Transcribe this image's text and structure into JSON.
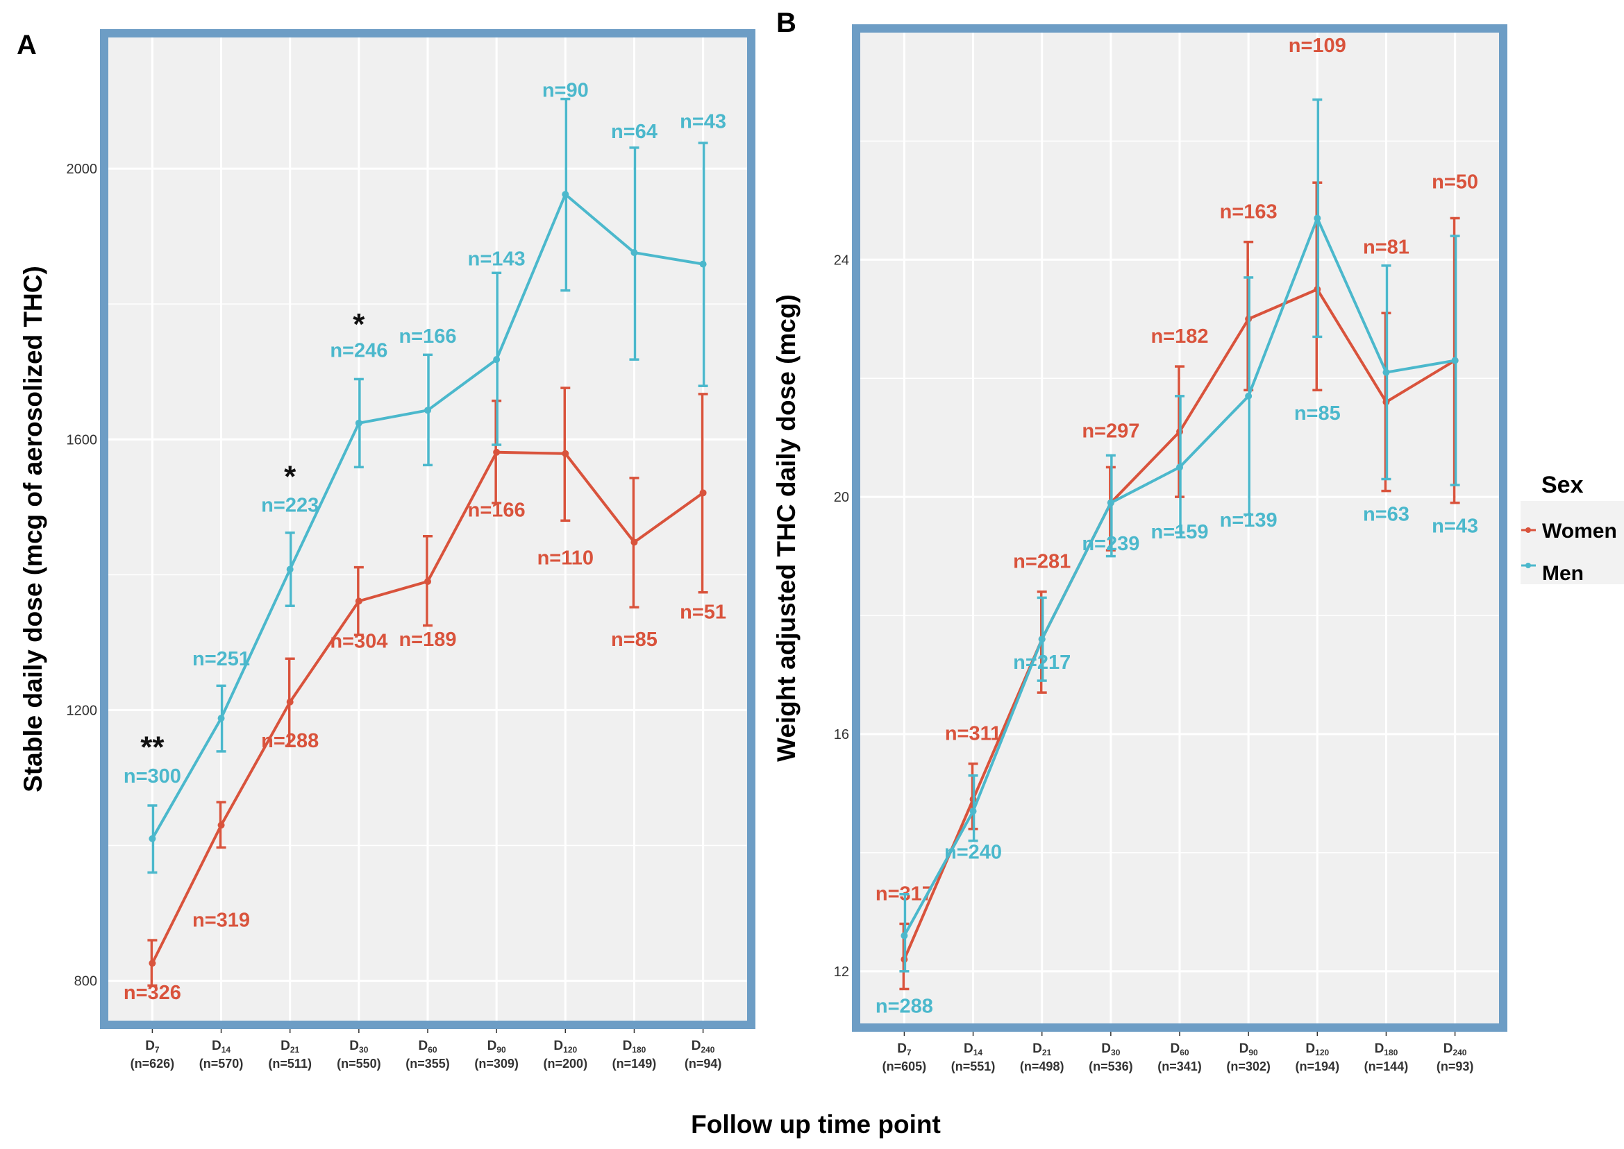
{
  "figure": {
    "x_axis_title": "Follow up time point"
  },
  "legend": {
    "title": "Sex",
    "items": [
      {
        "label": "Women",
        "color": "#d9533c"
      },
      {
        "label": "Men",
        "color": "#4bb8cc"
      }
    ]
  },
  "chart_data": [
    {
      "panel": "A",
      "type": "line",
      "ylabel": "Stable daily dose (mcg of aerosolized THC)",
      "xlabel": "Follow up time point",
      "ylim": [
        735,
        2200
      ],
      "yticks": [
        800,
        1200,
        1600,
        2000
      ],
      "grid": true,
      "categories": [
        {
          "main": "D",
          "sub": "7",
          "n": "(n=626)"
        },
        {
          "main": "D",
          "sub": "14",
          "n": "(n=570)"
        },
        {
          "main": "D",
          "sub": "21",
          "n": "(n=511)"
        },
        {
          "main": "D",
          "sub": "30",
          "n": "(n=550)"
        },
        {
          "main": "D",
          "sub": "60",
          "n": "(n=355)"
        },
        {
          "main": "D",
          "sub": "90",
          "n": "(n=309)"
        },
        {
          "main": "D",
          "sub": "120",
          "n": "(n=200)"
        },
        {
          "main": "D",
          "sub": "180",
          "n": "(n=149)"
        },
        {
          "main": "D",
          "sub": "240",
          "n": "(n=94)"
        }
      ],
      "series": [
        {
          "name": "Women",
          "color": "#d9533c",
          "values": [
            826,
            1030,
            1212,
            1361,
            1390,
            1581,
            1579,
            1448,
            1521
          ],
          "err_low": [
            793,
            997,
            1147,
            1311,
            1325,
            1506,
            1480,
            1352,
            1374
          ],
          "err_high": [
            860,
            1064,
            1276,
            1411,
            1457,
            1657,
            1676,
            1543,
            1667
          ],
          "n_labels": [
            "n=326",
            "n=319",
            "n=288",
            "n=304",
            "n=189",
            "n=166",
            "n=110",
            "n=85",
            "n=51"
          ],
          "n_label_y": [
            773,
            880,
            1145,
            1292,
            1295,
            1486,
            1415,
            1295,
            1335
          ]
        },
        {
          "name": "Men",
          "color": "#4bb8cc",
          "values": [
            1010,
            1188,
            1408,
            1624,
            1643,
            1718,
            1962,
            1876,
            1859
          ],
          "err_low": [
            960,
            1139,
            1354,
            1559,
            1562,
            1592,
            1820,
            1718,
            1679
          ],
          "err_high": [
            1059,
            1236,
            1462,
            1689,
            1725,
            1846,
            2103,
            2031,
            2038
          ],
          "n_labels": [
            "n=300",
            "n=251",
            "n=223",
            "n=246",
            "n=166",
            "n=143",
            "n=90",
            "n=64",
            "n=43"
          ],
          "n_label_y": [
            1093,
            1266,
            1493,
            1722,
            1743,
            1857,
            2106,
            2045,
            2060
          ]
        }
      ],
      "significance": [
        {
          "index": 0,
          "label": "**",
          "y": 1130
        },
        {
          "index": 2,
          "label": "*",
          "y": 1530
        },
        {
          "index": 3,
          "label": "*",
          "y": 1755
        }
      ]
    },
    {
      "panel": "B",
      "type": "line",
      "ylabel": "Weight adjusted THC daily dose (mcg)",
      "xlabel": "Follow up time point",
      "ylim": [
        11.05,
        27.9
      ],
      "yticks": [
        12,
        16,
        20,
        24
      ],
      "grid": true,
      "categories": [
        {
          "main": "D",
          "sub": "7",
          "n": "(n=605)"
        },
        {
          "main": "D",
          "sub": "14",
          "n": "(n=551)"
        },
        {
          "main": "D",
          "sub": "21",
          "n": "(n=498)"
        },
        {
          "main": "D",
          "sub": "30",
          "n": "(n=536)"
        },
        {
          "main": "D",
          "sub": "60",
          "n": "(n=341)"
        },
        {
          "main": "D",
          "sub": "90",
          "n": "(n=302)"
        },
        {
          "main": "D",
          "sub": "120",
          "n": "(n=194)"
        },
        {
          "main": "D",
          "sub": "180",
          "n": "(n=144)"
        },
        {
          "main": "D",
          "sub": "240",
          "n": "(n=93)"
        }
      ],
      "series": [
        {
          "name": "Women",
          "color": "#d9533c",
          "values": [
            12.2,
            14.9,
            17.6,
            19.9,
            21.1,
            23.0,
            23.5,
            21.6,
            22.3
          ],
          "err_low": [
            11.7,
            14.4,
            16.7,
            19.1,
            20.0,
            21.8,
            21.8,
            20.1,
            19.9
          ],
          "err_high": [
            12.8,
            15.5,
            18.4,
            20.5,
            22.2,
            24.3,
            25.3,
            23.1,
            24.7
          ],
          "n_labels": [
            "n=317",
            "n=311",
            "n=281",
            "n=297",
            "n=182",
            "n=163",
            "n=109",
            "n=81",
            "n=50"
          ],
          "n_label_y": [
            13.2,
            15.9,
            18.8,
            21.0,
            22.6,
            24.7,
            27.5,
            24.1,
            25.2
          ]
        },
        {
          "name": "Men",
          "color": "#4bb8cc",
          "values": [
            12.6,
            14.7,
            17.6,
            19.9,
            20.5,
            21.7,
            24.7,
            22.1,
            22.3
          ],
          "err_low": [
            12.0,
            14.2,
            16.9,
            19.0,
            19.4,
            19.7,
            22.7,
            20.3,
            20.2
          ],
          "err_high": [
            13.3,
            15.3,
            18.3,
            20.7,
            21.7,
            23.7,
            26.7,
            23.9,
            24.4
          ],
          "n_labels": [
            "n=288",
            "n=240",
            "n=217",
            "n=239",
            "n=159",
            "n=139",
            "n=85",
            "n=63",
            "n=43"
          ],
          "n_label_y": [
            11.3,
            13.9,
            17.1,
            19.1,
            19.3,
            19.5,
            21.3,
            19.6,
            19.4
          ]
        }
      ],
      "significance": []
    }
  ]
}
